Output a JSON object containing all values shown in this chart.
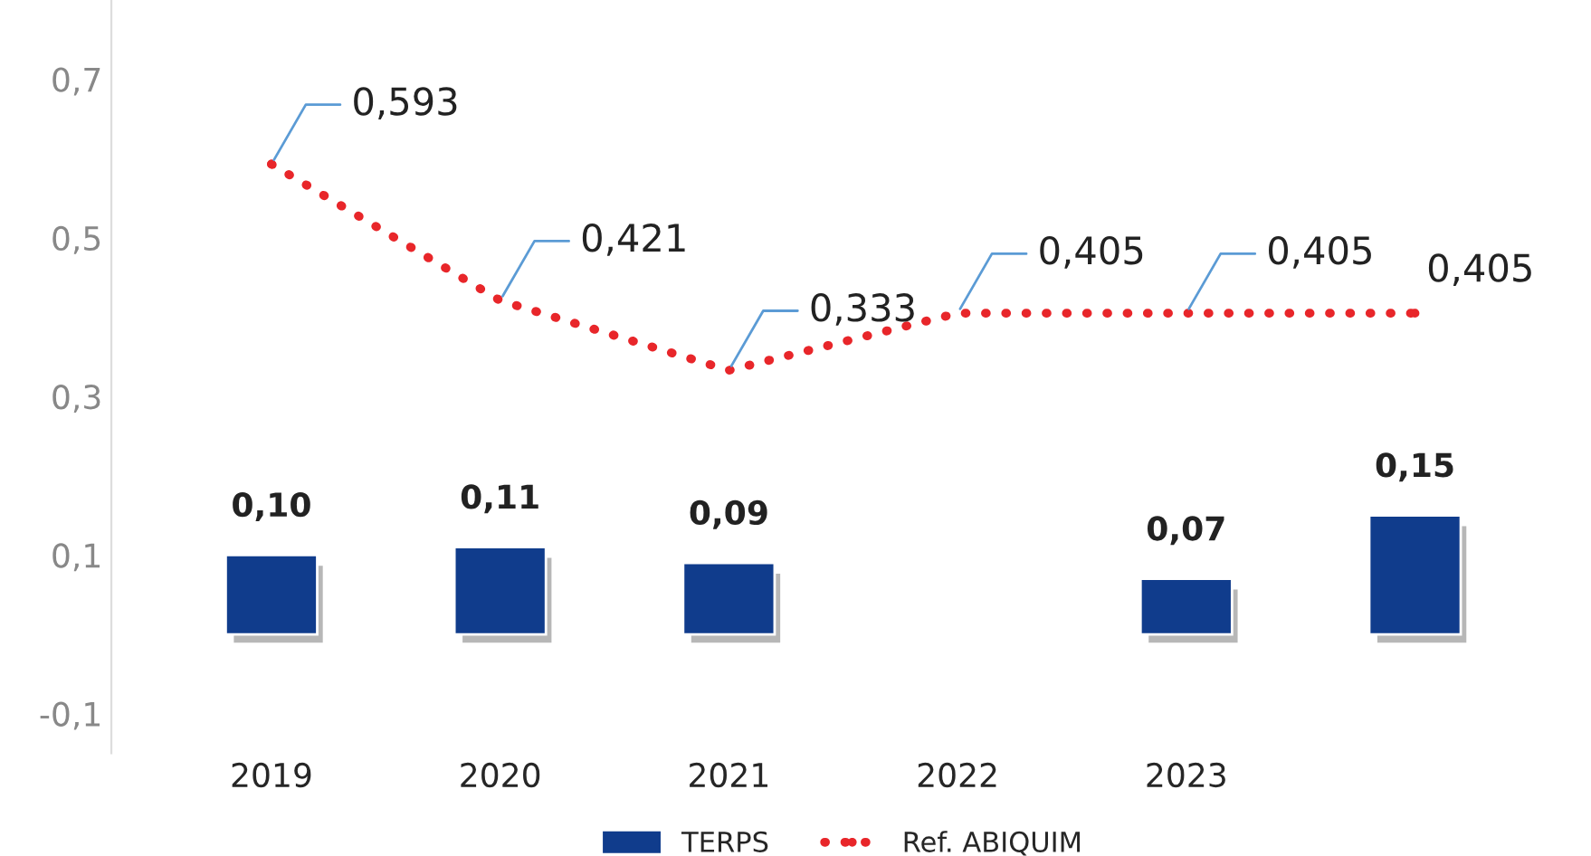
{
  "chart_data": {
    "type": "bar",
    "categories": [
      "2019",
      "2020",
      "2021",
      "2022",
      "2023",
      null
    ],
    "series": [
      {
        "name": "TERPS",
        "color": "#103c8c",
        "values": [
          0.1,
          0.11,
          0.09,
          null,
          0.07,
          0.15
        ],
        "value_labels": [
          "0,10",
          "0,11",
          "0,09",
          null,
          "0,07",
          "0,15"
        ]
      },
      {
        "name": "Ref. ABIQUIM",
        "type": "line",
        "color": "#e8262a",
        "line_style": "dotted",
        "marker": "none",
        "values": [
          0.593,
          0.421,
          0.333,
          0.405,
          0.405,
          0.405
        ],
        "value_labels": [
          "0,593",
          "0,421",
          "0,333",
          "0,405",
          "0,405",
          "0,405"
        ]
      }
    ],
    "ylim": [
      -0.15,
      0.8
    ],
    "yticks": [
      {
        "value": -0.1,
        "label": "-0,1"
      },
      {
        "value": 0.1,
        "label": "0,1"
      },
      {
        "value": 0.3,
        "label": "0,3"
      },
      {
        "value": 0.5,
        "label": "0,5"
      },
      {
        "value": 0.7,
        "label": "0,7"
      }
    ],
    "grid": false,
    "legend": "bottom"
  }
}
